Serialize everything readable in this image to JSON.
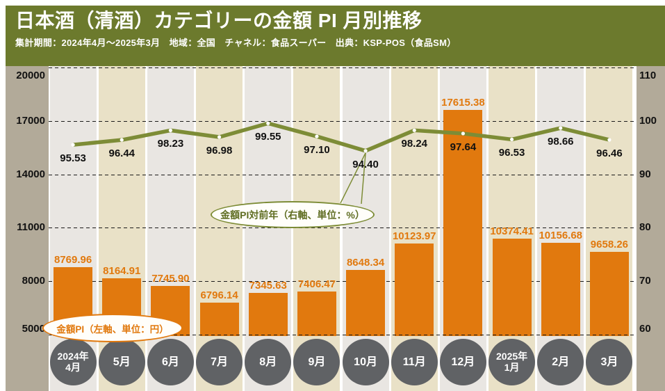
{
  "header": {
    "title": "日本酒（清酒）カテゴリーの金額 PI 月別推移",
    "subtitle": "集計期間：2024年4月～2025年3月　地域：全国　チャネル：食品スーパー　出典：KSP-POS（食品SM）"
  },
  "chart_data": {
    "type": "bar",
    "subtype": "bar+line dual axis",
    "title": "日本酒（清酒）カテゴリーの金額 PI 月別推移",
    "categories": [
      "2024年\n4月",
      "5月",
      "6月",
      "7月",
      "8月",
      "9月",
      "10月",
      "11月",
      "12月",
      "2025年\n1月",
      "2月",
      "3月"
    ],
    "series": [
      {
        "name": "金額PI（左軸、単位：円）",
        "type": "bar",
        "axis": "left",
        "values": [
          8769.96,
          8164.91,
          7745.9,
          6796.14,
          7345.63,
          7406.47,
          8648.34,
          10123.97,
          17615.38,
          10374.41,
          10156.68,
          9658.26
        ]
      },
      {
        "name": "金額PI対前年（右軸、単位：%）",
        "type": "line",
        "axis": "right",
        "values": [
          95.53,
          96.44,
          98.23,
          96.98,
          99.55,
          97.1,
          94.4,
          98.24,
          97.64,
          96.53,
          98.66,
          96.46
        ]
      }
    ],
    "left_axis": {
      "min": 5000,
      "max": 20000,
      "ticks": [
        20000,
        17000,
        14000,
        11000,
        8000,
        5000
      ]
    },
    "right_axis": {
      "min": 60,
      "max": 110,
      "ticks": [
        110,
        100,
        90,
        80,
        70,
        60
      ]
    },
    "grid": "dashed horizontal",
    "legend_position": "callouts on plot",
    "annotations": {
      "bar_callout": "金額PI（左軸、単位：円）",
      "line_callout": "金額PI対前年（右軸、単位：%）"
    },
    "colors": {
      "header_bg": "#6C7A2D",
      "bar": "#E1790E",
      "line": "#7D8C36",
      "axis_panel": "#B2AA99",
      "stripe_light": "#E9E6E2",
      "stripe_tan": "#E9E1C7",
      "month_circle": "#606265",
      "grid": "#1A1A1A"
    }
  }
}
